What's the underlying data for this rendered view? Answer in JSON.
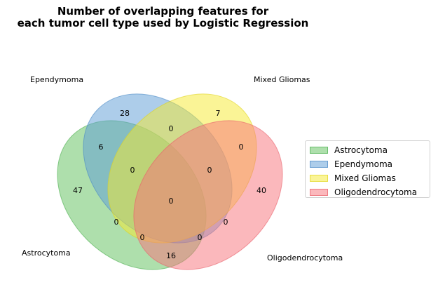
{
  "title_line1": "Number of overlapping features for",
  "title_line2": "each tumor cell type used by Logistic Regression",
  "sets": [
    {
      "name": "Astrocytoma",
      "fill": "#5dc05a",
      "stroke": "#4caf50",
      "label": "Astrocytoma"
    },
    {
      "name": "Ependymoma",
      "fill": "#5b9bd5",
      "stroke": "#4a89c4",
      "label": "Ependymoma"
    },
    {
      "name": "Mixed Gliomas",
      "fill": "#f5e92e",
      "stroke": "#e0d420",
      "label": "Mixed Gliomas"
    },
    {
      "name": "Oligodendrocytoma",
      "fill": "#f7727a",
      "stroke": "#e8606a",
      "label": "Oligodendrocytoma"
    }
  ],
  "regions": {
    "astro_only": "47",
    "epend_only": "28",
    "mixed_only": "7",
    "oligo_only": "40",
    "astro_epend": "6",
    "epend_mixed": "0",
    "mixed_oligo": "0",
    "astro_oligo": "16",
    "astro_epend_mixed": "0",
    "epend_mixed_oligo": "0",
    "astro_mixed": "0",
    "epend_oligo": "0",
    "astro_mixed_oligo": "0",
    "astro_epend_oligo": "0",
    "all_four": "0",
    "astro_epend_mixed_b": "0"
  },
  "legend": [
    "Astrocytoma",
    "Ependymoma",
    "Mixed Gliomas",
    "Oligodendrocytoma"
  ]
}
